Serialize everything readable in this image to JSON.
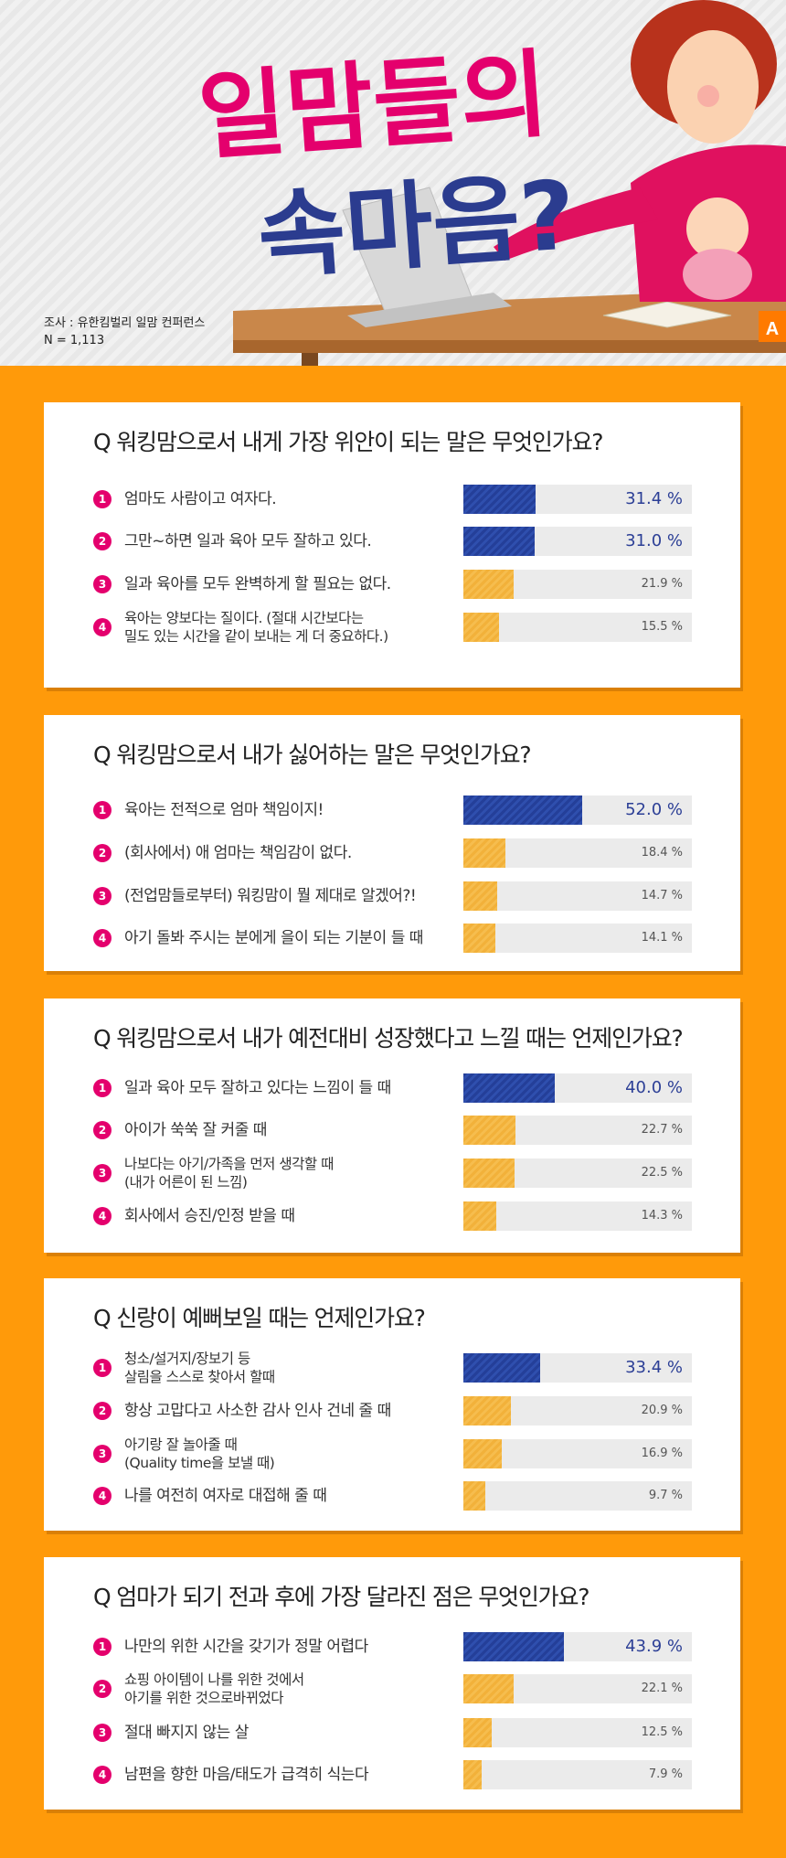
{
  "header": {
    "title_line1": "일맘들의",
    "title_line2": "속마음?",
    "survey_line1": "조사 : 유한킴벌리 일맘 컨퍼런스",
    "survey_line2": "N = 1,113",
    "badge": "A"
  },
  "colors": {
    "background": "#ff9a0a",
    "top_bar": "#243f99",
    "other_bar": "#f2b13a",
    "number_circle": "#e4006d",
    "title_pink": "#e4006d",
    "title_navy": "#2b3c8f"
  },
  "chart_data": [
    {
      "type": "bar",
      "title": "Q 워킹맘으로서 내게 가장 위안이 되는 말은 무엇인가요?",
      "unit": "%",
      "xlim": [
        0,
        100
      ],
      "categories": [
        [
          "엄마도 사람이고 여자다."
        ],
        [
          "그만~하면 일과 육아 모두 잘하고 있다."
        ],
        [
          "일과 육아를 모두 완벽하게 할 필요는 없다."
        ],
        [
          "육아는 양보다는 질이다. (절대 시간보다는",
          "밀도 있는 시간을 같이 보내는 게 더 중요하다.)"
        ]
      ],
      "values": [
        31.4,
        31.0,
        21.9,
        15.5
      ],
      "labels": [
        "31.4 %",
        "31.0 %",
        "21.9 %",
        "15.5 %"
      ]
    },
    {
      "type": "bar",
      "title": "Q 워킹맘으로서 내가 싫어하는 말은 무엇인가요?",
      "unit": "%",
      "xlim": [
        0,
        100
      ],
      "categories": [
        [
          "육아는 전적으로 엄마 책임이지!"
        ],
        [
          "(회사에서) 애 엄마는 책임감이 없다."
        ],
        [
          "(전업맘들로부터) 워킹맘이 뭘 제대로 알겠어?!"
        ],
        [
          "아기 돌봐 주시는 분에게 을이 되는 기분이 들 때"
        ]
      ],
      "values": [
        52.0,
        18.4,
        14.7,
        14.1
      ],
      "labels": [
        "52.0 %",
        "18.4 %",
        "14.7 %",
        "14.1 %"
      ]
    },
    {
      "type": "bar",
      "title": "Q 워킹맘으로서 내가 예전대비 성장했다고 느낄 때는 언제인가요?",
      "unit": "%",
      "xlim": [
        0,
        100
      ],
      "categories": [
        [
          "일과 육아 모두 잘하고 있다는 느낌이 들 때"
        ],
        [
          "아이가 쑥쑥 잘 커줄 때"
        ],
        [
          "나보다는 아기/가족을 먼저 생각할 때",
          "(내가 어른이 된 느낌)"
        ],
        [
          "회사에서 승진/인정 받을 때"
        ]
      ],
      "values": [
        40.0,
        22.7,
        22.5,
        14.3
      ],
      "labels": [
        "40.0 %",
        "22.7 %",
        "22.5 %",
        "14.3 %"
      ]
    },
    {
      "type": "bar",
      "title": "Q 신랑이 예뻐보일 때는 언제인가요?",
      "unit": "%",
      "xlim": [
        0,
        100
      ],
      "categories": [
        [
          "청소/설거지/장보기 등",
          "살림을 스스로 찾아서 할때"
        ],
        [
          "항상 고맙다고 사소한 감사 인사 건네 줄 때"
        ],
        [
          "아기랑 잘 놀아줄 때",
          "(Quality time을 보낼 때)"
        ],
        [
          "나를 여전히 여자로 대접해 줄 때"
        ]
      ],
      "values": [
        33.4,
        20.9,
        16.9,
        9.7
      ],
      "labels": [
        "33.4 %",
        "20.9 %",
        "16.9 %",
        "9.7 %"
      ]
    },
    {
      "type": "bar",
      "title": "Q 엄마가 되기 전과 후에 가장 달라진 점은 무엇인가요?",
      "unit": "%",
      "xlim": [
        0,
        100
      ],
      "categories": [
        [
          "나만의 위한 시간을 갖기가 정말 어렵다"
        ],
        [
          "쇼핑 아이템이 나를 위한 것에서",
          "아기를 위한 것으로바뀌었다"
        ],
        [
          "절대 빠지지 않는 살"
        ],
        [
          "남편을 향한 마음/태도가 급격히 식는다"
        ]
      ],
      "values": [
        43.9,
        22.1,
        12.5,
        7.9
      ],
      "labels": [
        "43.9 %",
        "22.1 %",
        "12.5 %",
        "7.9 %"
      ]
    }
  ]
}
